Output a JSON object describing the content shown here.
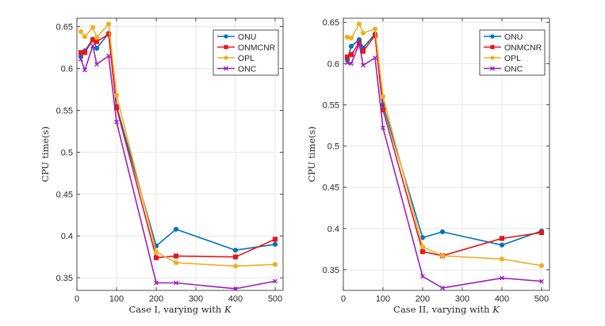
{
  "chart_data": [
    {
      "type": "line",
      "title": "",
      "xlabel": "Case I, varying with K",
      "ylabel": "CPU time(s)",
      "xlim": [
        0,
        520
      ],
      "ylim": [
        0.335,
        0.66
      ],
      "xticks": [
        0,
        100,
        200,
        300,
        400,
        500
      ],
      "yticks": [
        0.35,
        0.4,
        0.45,
        0.5,
        0.55,
        0.6,
        0.65
      ],
      "xtick_labels": [
        "0",
        "100",
        "200",
        "300",
        "400",
        "500"
      ],
      "ytick_labels": [
        "0.35",
        "0.4",
        "0.45",
        "0.5",
        "0.55",
        "0.6",
        "0.65"
      ],
      "grid": true,
      "legend_position": "top-right",
      "series": [
        {
          "name": "ONU",
          "color": "#0072BD",
          "marker": "circle",
          "x": [
            10,
            20,
            40,
            50,
            80,
            100,
            200,
            250,
            400,
            500
          ],
          "y": [
            0.614,
            0.621,
            0.635,
            0.624,
            0.642,
            0.555,
            0.388,
            0.408,
            0.383,
            0.39
          ]
        },
        {
          "name": "ONMCNR",
          "color": "#E8161B",
          "marker": "square",
          "x": [
            10,
            20,
            40,
            50,
            80,
            100,
            200,
            250,
            400,
            500
          ],
          "y": [
            0.619,
            0.619,
            0.634,
            0.632,
            0.641,
            0.553,
            0.374,
            0.376,
            0.375,
            0.396
          ]
        },
        {
          "name": "OPL",
          "color": "#EDB120",
          "marker": "circle",
          "x": [
            10,
            20,
            40,
            50,
            80,
            100,
            200,
            250,
            400,
            500
          ],
          "y": [
            0.644,
            0.638,
            0.649,
            0.637,
            0.653,
            0.568,
            0.381,
            0.368,
            0.364,
            0.366
          ]
        },
        {
          "name": "ONC",
          "color": "#9B1FC0",
          "marker": "x",
          "x": [
            10,
            20,
            40,
            50,
            80,
            100,
            200,
            250,
            400,
            500
          ],
          "y": [
            0.611,
            0.598,
            0.627,
            0.605,
            0.615,
            0.536,
            0.344,
            0.344,
            0.337,
            0.346
          ]
        }
      ]
    },
    {
      "type": "line",
      "title": "",
      "xlabel": "Case II, varying with K",
      "ylabel": "CPU time(s)",
      "xlim": [
        0,
        520
      ],
      "ylim": [
        0.325,
        0.655
      ],
      "xticks": [
        0,
        100,
        200,
        300,
        400,
        500
      ],
      "yticks": [
        0.35,
        0.4,
        0.45,
        0.5,
        0.55,
        0.6,
        0.65
      ],
      "xtick_labels": [
        "0",
        "100",
        "200",
        "300",
        "400",
        "500"
      ],
      "ytick_labels": [
        "0.35",
        "0.4",
        "0.45",
        "0.5",
        "0.55",
        "0.6",
        "0.65"
      ],
      "grid": true,
      "legend_position": "top-right",
      "series": [
        {
          "name": "ONU",
          "color": "#0072BD",
          "marker": "circle",
          "x": [
            10,
            20,
            40,
            50,
            80,
            100,
            200,
            250,
            400,
            500
          ],
          "y": [
            0.605,
            0.621,
            0.629,
            0.619,
            0.636,
            0.55,
            0.389,
            0.396,
            0.38,
            0.397
          ]
        },
        {
          "name": "ONMCNR",
          "color": "#E8161B",
          "marker": "square",
          "x": [
            10,
            20,
            40,
            50,
            80,
            100,
            200,
            250,
            400,
            500
          ],
          "y": [
            0.608,
            0.611,
            0.625,
            0.615,
            0.634,
            0.544,
            0.372,
            0.367,
            0.388,
            0.395
          ]
        },
        {
          "name": "OPL",
          "color": "#EDB120",
          "marker": "circle",
          "x": [
            10,
            20,
            40,
            50,
            80,
            100,
            200,
            250,
            400,
            500
          ],
          "y": [
            0.632,
            0.631,
            0.648,
            0.637,
            0.642,
            0.56,
            0.378,
            0.367,
            0.363,
            0.355
          ]
        },
        {
          "name": "ONC",
          "color": "#9B1FC0",
          "marker": "x",
          "x": [
            10,
            20,
            40,
            50,
            80,
            100,
            200,
            250,
            400,
            500
          ],
          "y": [
            0.601,
            0.6,
            0.624,
            0.598,
            0.607,
            0.522,
            0.342,
            0.328,
            0.34,
            0.336
          ]
        }
      ]
    }
  ]
}
